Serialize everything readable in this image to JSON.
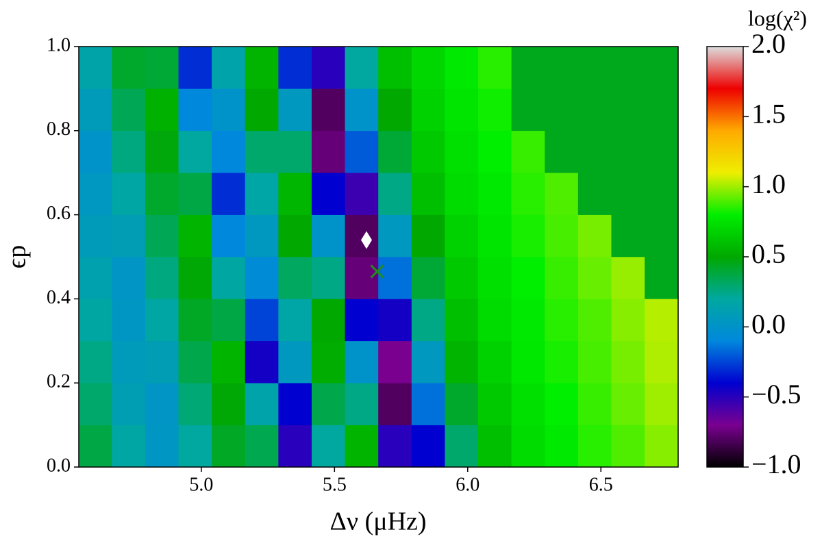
{
  "chart_data": {
    "type": "heatmap",
    "xlabel": "Δν (μHz)",
    "ylabel": "ϵp",
    "colorbar_label": "log(χ²)",
    "xlim": [
      4.54,
      6.79
    ],
    "ylim": [
      0,
      1
    ],
    "clim": [
      -1,
      2
    ],
    "xticks": [
      {
        "value": 5,
        "label": "5.0"
      },
      5.5,
      {
        "value": 6,
        "label": "6.0"
      },
      6.5
    ],
    "yticks": [
      {
        "value": 0,
        "label": "0.0"
      },
      0.2,
      0.4,
      0.6,
      0.8,
      {
        "value": 1,
        "label": "1.0"
      }
    ],
    "cticks": [
      {
        "value": -1,
        "label": "−1.0"
      },
      {
        "value": -0.5,
        "label": "−0.5"
      },
      {
        "value": 0,
        "label": "0.0"
      },
      0.5,
      {
        "value": 1,
        "label": "1.0"
      },
      1.5,
      {
        "value": 2,
        "label": "2.0"
      }
    ],
    "colormap": [
      "#000000",
      "#7a0090",
      "#0000d0",
      "#0088dd",
      "#00a8a0",
      "#00a800",
      "#00ee00",
      "#eeee00",
      "#ffaa00",
      "#ee0000",
      "#dddddd"
    ],
    "x_edges": [
      4.54,
      4.665,
      4.79,
      4.915,
      5.04,
      5.165,
      5.29,
      5.415,
      5.54,
      5.665,
      5.79,
      5.915,
      6.04,
      6.165,
      6.29,
      6.415,
      6.54,
      6.665,
      6.79
    ],
    "y_edges": [
      0,
      0.1,
      0.2,
      0.3,
      0.4,
      0.5,
      0.6,
      0.7,
      0.8,
      0.9,
      1
    ],
    "values": [
      [
        0.37,
        0.18,
        0.03,
        0.2,
        0.43,
        0.35,
        -0.5,
        0.2,
        0.55,
        -0.5,
        -0.4,
        0.3,
        0.6,
        0.72,
        0.78,
        0.85,
        0.9,
        0.97
      ],
      [
        0.3,
        0.11,
        0.02,
        0.28,
        0.49,
        0.15,
        -0.4,
        0.36,
        0.25,
        -0.8,
        -0.15,
        0.42,
        0.64,
        0.74,
        0.8,
        0.87,
        0.93,
        1.0
      ],
      [
        0.25,
        0.07,
        0.1,
        0.36,
        0.55,
        -0.45,
        0.05,
        0.52,
        0.0,
        -0.7,
        0.05,
        0.55,
        0.68,
        0.77,
        0.83,
        0.89,
        0.95,
        1.02
      ],
      [
        0.19,
        0.03,
        0.18,
        0.43,
        0.37,
        -0.25,
        0.17,
        0.5,
        -0.4,
        -0.45,
        0.25,
        0.6,
        0.72,
        0.78,
        0.85,
        0.9,
        0.97,
        1.03
      ],
      [
        0.13,
        0.02,
        0.26,
        0.49,
        0.19,
        -0.07,
        0.32,
        0.25,
        -0.75,
        -0.15,
        0.4,
        0.64,
        0.74,
        0.8,
        0.87,
        0.93,
        0.99,
        0.45
      ],
      [
        0.08,
        0.1,
        0.34,
        0.55,
        -0.1,
        0.05,
        0.5,
        0.0,
        -0.8,
        0.05,
        0.5,
        0.68,
        0.76,
        0.83,
        0.89,
        0.95,
        0.45,
        0.45
      ],
      [
        0.04,
        0.18,
        0.42,
        0.37,
        -0.3,
        0.17,
        0.56,
        -0.4,
        -0.55,
        0.25,
        0.6,
        0.72,
        0.78,
        0.85,
        0.9,
        0.45,
        0.45,
        0.45
      ],
      [
        0.0,
        0.26,
        0.48,
        0.2,
        -0.1,
        0.3,
        0.3,
        -0.75,
        -0.2,
        0.4,
        0.64,
        0.74,
        0.8,
        0.87,
        0.45,
        0.45,
        0.45,
        0.45
      ],
      [
        0.08,
        0.34,
        0.54,
        -0.1,
        0.0,
        0.5,
        0.05,
        -0.8,
        0.0,
        0.5,
        0.68,
        0.76,
        0.82,
        0.45,
        0.45,
        0.45,
        0.45,
        0.45
      ],
      [
        0.16,
        0.42,
        0.4,
        -0.3,
        0.15,
        0.55,
        -0.3,
        -0.5,
        0.2,
        0.6,
        0.7,
        0.78,
        0.85,
        0.45,
        0.45,
        0.45,
        0.45,
        0.45
      ]
    ],
    "markers": [
      {
        "symbol": "diamond",
        "color": "#ffffff",
        "x": 5.62,
        "y": 0.54
      },
      {
        "symbol": "cross",
        "color": "#228b22",
        "x": 5.66,
        "y": 0.465
      }
    ]
  }
}
